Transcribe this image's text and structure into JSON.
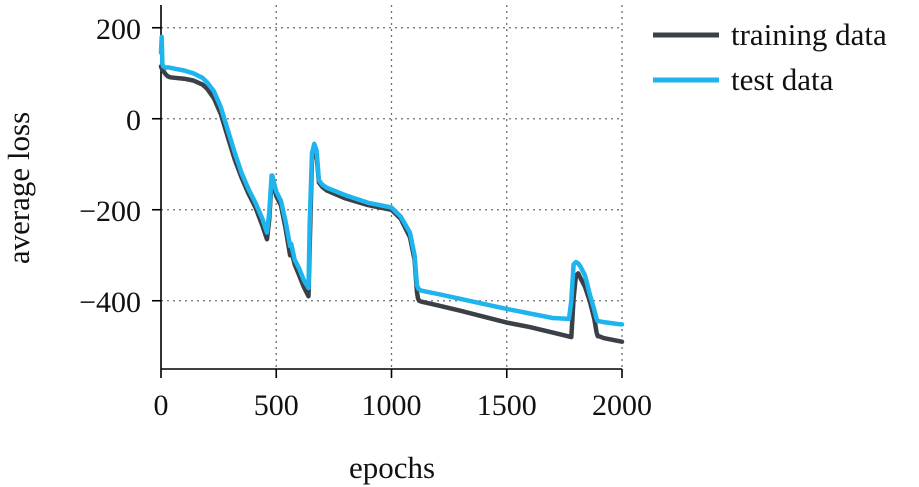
{
  "chart_data": {
    "type": "line",
    "title": "",
    "xlabel": "epochs",
    "ylabel": "average loss",
    "xlim": [
      0,
      2000
    ],
    "ylim": [
      -550,
      250
    ],
    "xticks": [
      0,
      500,
      1000,
      1500,
      2000
    ],
    "yticks": [
      200,
      0,
      -200,
      -400
    ],
    "xtick_labels": [
      "0",
      "500",
      "1000",
      "1500",
      "2000"
    ],
    "ytick_labels": [
      "200",
      "0",
      "−200",
      "−400"
    ],
    "grid": true,
    "legend_position": "right",
    "series": [
      {
        "name": "training data",
        "color": "#3b3f46",
        "x": [
          0,
          5,
          10,
          20,
          30,
          40,
          60,
          100,
          140,
          180,
          200,
          230,
          260,
          290,
          320,
          350,
          380,
          410,
          440,
          460,
          470,
          480,
          483,
          490,
          500,
          520,
          540,
          560,
          565,
          580,
          600,
          620,
          640,
          645,
          655,
          665,
          675,
          685,
          700,
          720,
          800,
          900,
          1000,
          1040,
          1080,
          1100,
          1110,
          1115,
          1120,
          1130,
          1200,
          1300,
          1400,
          1500,
          1600,
          1700,
          1780,
          1790,
          1800,
          1810,
          1820,
          1840,
          1860,
          1880,
          1890,
          1895,
          1900,
          1920,
          1950,
          1980,
          2000
        ],
        "values": [
          115,
          108,
          105,
          98,
          93,
          91,
          90,
          88,
          84,
          75,
          66,
          45,
          10,
          -40,
          -90,
          -130,
          -165,
          -195,
          -235,
          -265,
          -220,
          -135,
          -130,
          -150,
          -170,
          -190,
          -240,
          -300,
          -290,
          -320,
          -345,
          -370,
          -390,
          -280,
          -90,
          -65,
          -80,
          -140,
          -150,
          -158,
          -175,
          -190,
          -200,
          -220,
          -260,
          -310,
          -380,
          -395,
          -400,
          -402,
          -410,
          -422,
          -435,
          -448,
          -458,
          -470,
          -480,
          -395,
          -345,
          -340,
          -350,
          -370,
          -400,
          -440,
          -470,
          -478,
          -478,
          -482,
          -485,
          -488,
          -490
        ]
      },
      {
        "name": "test data",
        "color": "#1eb5ee",
        "x": [
          0,
          3,
          6,
          10,
          20,
          30,
          40,
          60,
          100,
          140,
          180,
          200,
          230,
          260,
          290,
          320,
          350,
          380,
          410,
          440,
          460,
          470,
          480,
          483,
          490,
          500,
          520,
          540,
          560,
          565,
          580,
          600,
          620,
          640,
          645,
          655,
          665,
          675,
          685,
          700,
          720,
          800,
          900,
          1000,
          1040,
          1080,
          1100,
          1110,
          1115,
          1120,
          1130,
          1200,
          1300,
          1400,
          1500,
          1600,
          1700,
          1770,
          1780,
          1790,
          1800,
          1810,
          1820,
          1840,
          1860,
          1880,
          1890,
          1895,
          1900,
          1920,
          1950,
          1980,
          2000
        ],
        "values": [
          145,
          180,
          120,
          115,
          112,
          113,
          112,
          110,
          106,
          100,
          90,
          80,
          60,
          25,
          -25,
          -75,
          -120,
          -155,
          -185,
          -220,
          -250,
          -205,
          -125,
          -125,
          -140,
          -160,
          -180,
          -225,
          -280,
          -275,
          -310,
          -330,
          -355,
          -372,
          -230,
          -75,
          -55,
          -70,
          -135,
          -145,
          -152,
          -168,
          -185,
          -195,
          -215,
          -250,
          -300,
          -365,
          -372,
          -375,
          -378,
          -385,
          -396,
          -407,
          -418,
          -428,
          -438,
          -440,
          -400,
          -320,
          -315,
          -318,
          -325,
          -345,
          -385,
          -420,
          -440,
          -445,
          -445,
          -447,
          -449,
          -451,
          -452
        ]
      }
    ]
  }
}
